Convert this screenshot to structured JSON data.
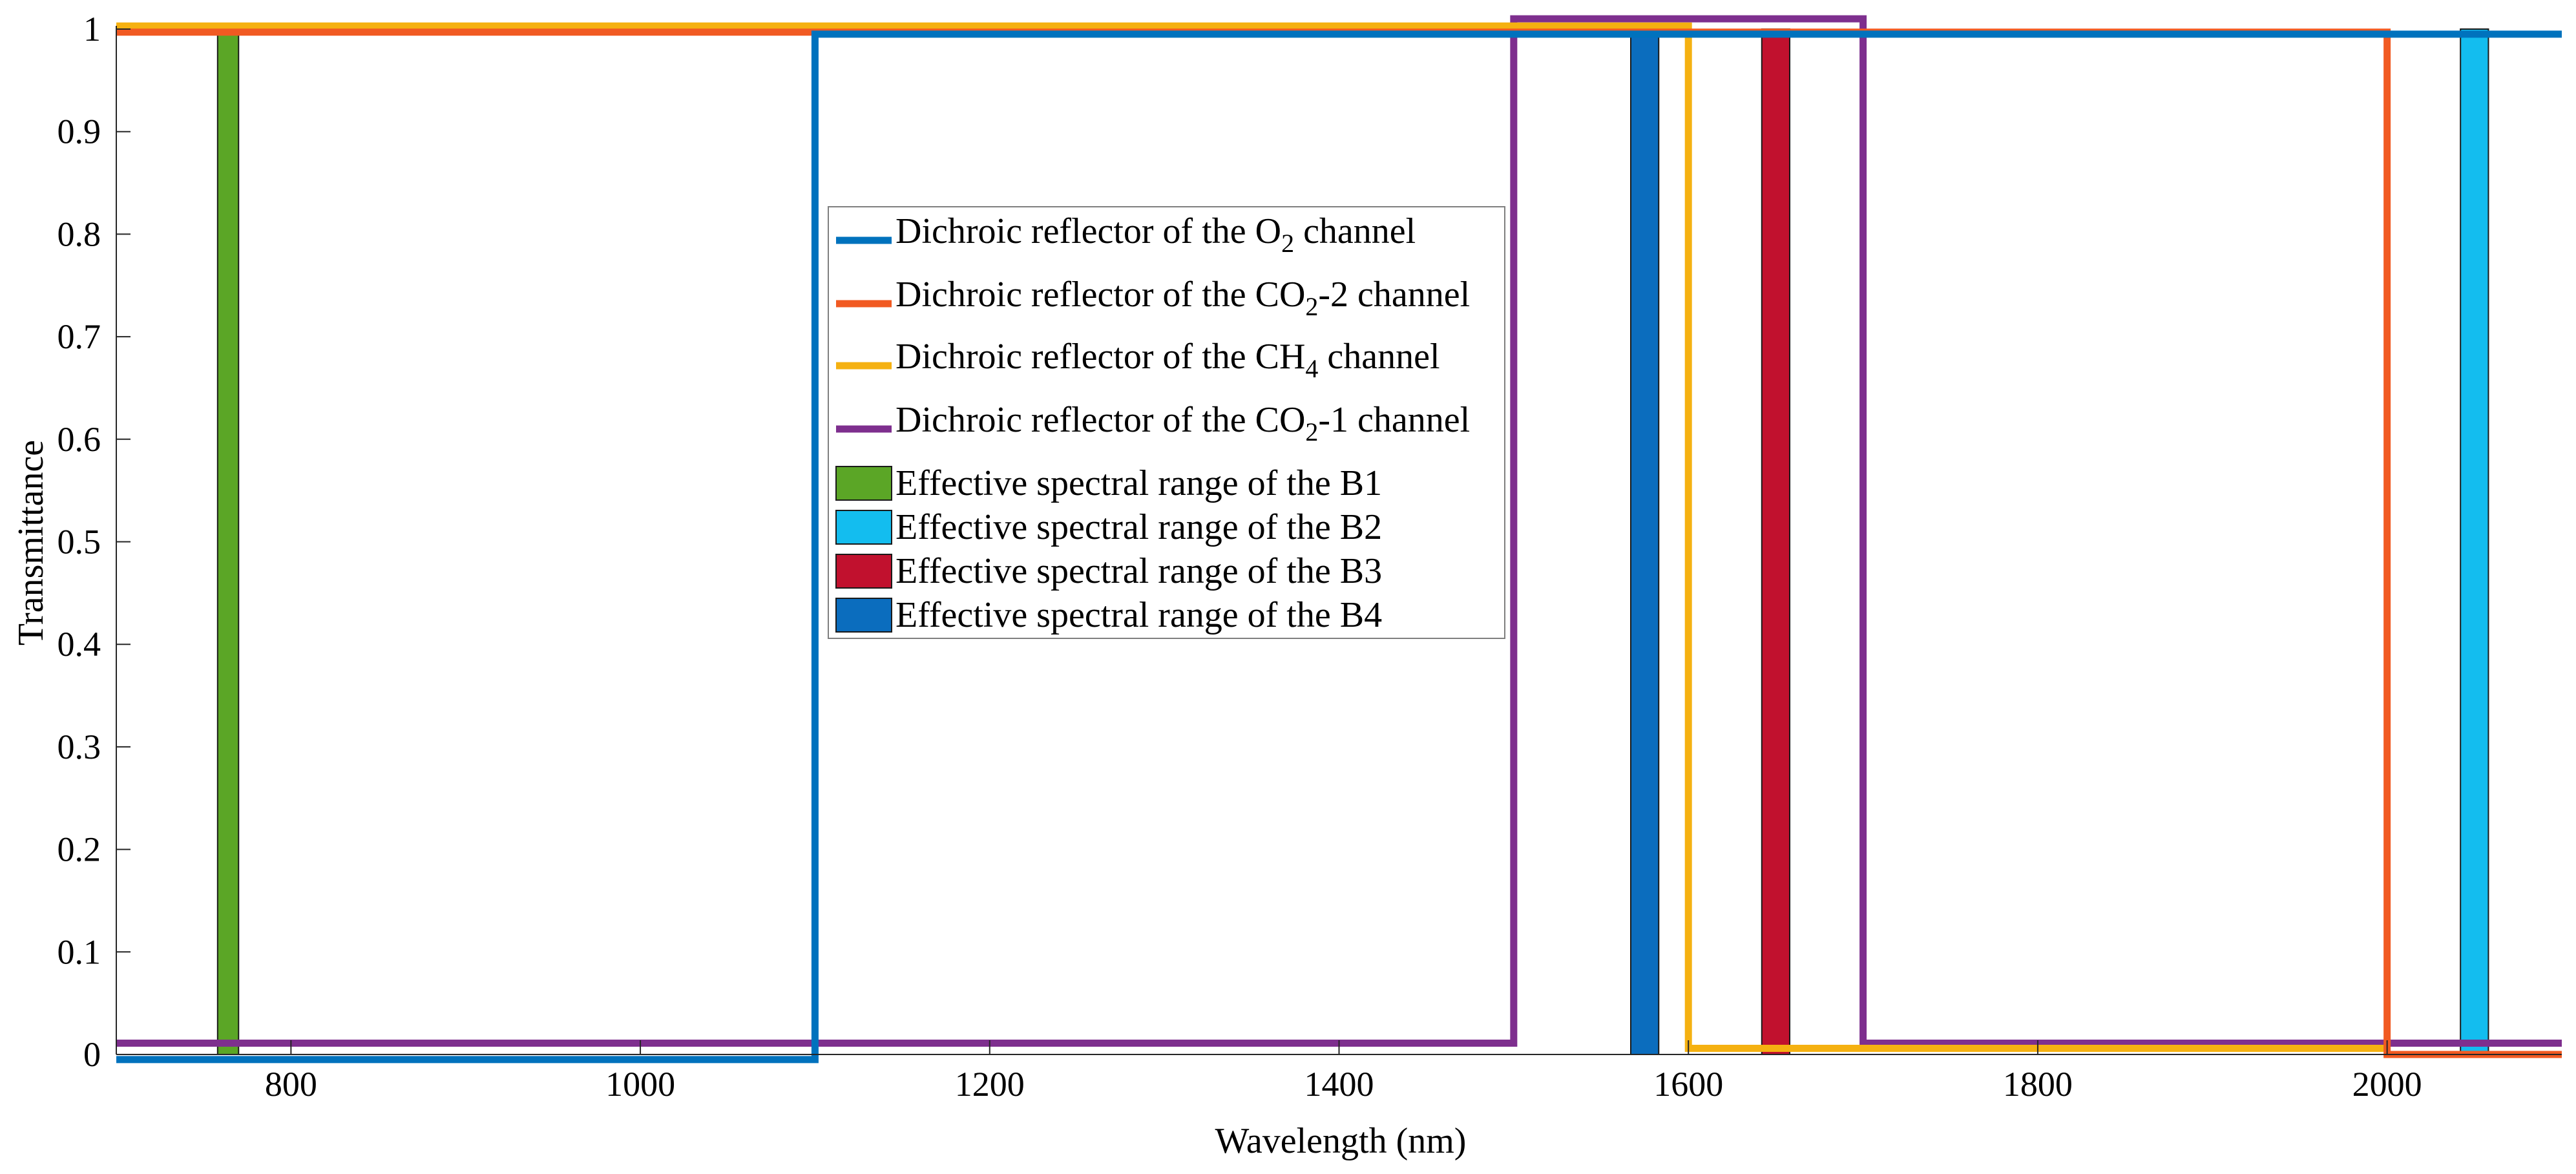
{
  "chart_data": {
    "type": "line",
    "title": "",
    "xlabel": "Wavelength (nm)",
    "ylabel": "Transmittance",
    "xlim": [
      700,
      2100
    ],
    "ylim": [
      0,
      1
    ],
    "x_ticks": [
      800,
      1000,
      1200,
      1400,
      1600,
      1800,
      2000
    ],
    "x_tick_labels": [
      "800",
      "1000",
      "1200",
      "1400",
      "1600",
      "1800",
      "2000"
    ],
    "y_ticks": [
      0,
      0.1,
      0.2,
      0.3,
      0.4,
      0.5,
      0.6,
      0.7,
      0.8,
      0.9,
      1
    ],
    "y_tick_labels": [
      "0",
      "0.1",
      "0.2",
      "0.3",
      "0.4",
      "0.5",
      "0.6",
      "0.7",
      "0.8",
      "0.9",
      "1"
    ],
    "grid": false,
    "legend_position": "center",
    "series": [
      {
        "id": "o2",
        "name": "Dichroic reflector of the O2 channel",
        "label_pre": "Dichroic reflector of the O",
        "label_sub": "2",
        "label_post": " channel",
        "color": "#0072BD",
        "x": [
          700,
          1100,
          1100,
          2100
        ],
        "y": [
          -0.005,
          -0.005,
          0.995,
          0.995
        ]
      },
      {
        "id": "co2_2",
        "name": "Dichroic reflector of the CO2-2 channel",
        "label_pre": "Dichroic reflector of the CO",
        "label_sub": "2",
        "label_post": "-2 channel",
        "color": "#F15A22",
        "x": [
          700,
          2000,
          2000,
          2100
        ],
        "y": [
          0.997,
          0.997,
          0.0,
          0.0
        ]
      },
      {
        "id": "ch4",
        "name": "Dichroic reflector of the CH4 channel",
        "label_pre": "Dichroic reflector of the CH",
        "label_sub": "4",
        "label_post": " channel",
        "color": "#F5B111",
        "x": [
          700,
          1600,
          1600,
          2000
        ],
        "y": [
          1.003,
          1.003,
          0.006,
          0.006
        ]
      },
      {
        "id": "co2_1",
        "name": "Dichroic reflector of the CO2-1 channel",
        "label_pre": "Dichroic reflector of the CO",
        "label_sub": "2",
        "label_post": "-1 channel",
        "color": "#7E2F8E",
        "x": [
          700,
          1500,
          1500,
          1700,
          1700,
          2100
        ],
        "y": [
          0.011,
          0.011,
          1.01,
          1.01,
          0.011,
          0.011
        ]
      }
    ],
    "bars": [
      {
        "id": "b1",
        "name": "Effective spectral range of the B1",
        "x_start": 758,
        "x_end": 770,
        "value": 1,
        "color": "#5BA626"
      },
      {
        "id": "b2",
        "name": "Effective spectral range of the B2",
        "x_start": 2042,
        "x_end": 2058,
        "value": 1,
        "color": "#13BDEF"
      },
      {
        "id": "b3",
        "name": "Effective spectral range of the B3",
        "x_start": 1642,
        "x_end": 1658,
        "value": 1,
        "color": "#C1112E"
      },
      {
        "id": "b4",
        "name": "Effective spectral range of the B4",
        "x_start": 1567,
        "x_end": 1583,
        "value": 1,
        "color": "#0B6DBE"
      }
    ]
  }
}
